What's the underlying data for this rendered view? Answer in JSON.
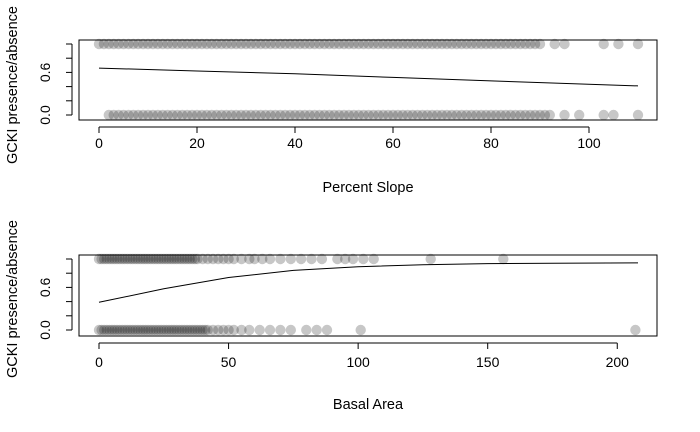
{
  "chart_data": [
    {
      "type": "scatter",
      "title": "",
      "xlabel": "Percent Slope",
      "ylabel": "GCKI presence/absence",
      "xlim": [
        0,
        110
      ],
      "ylim": [
        0,
        1
      ],
      "x_ticks": [
        0,
        20,
        40,
        60,
        80,
        100
      ],
      "y_ticks": [
        0.0,
        0.6
      ],
      "grid": false,
      "legend": "none",
      "point_style": "translucent grey filled circles",
      "series": [
        {
          "type": "scatter",
          "points_presence_y1_x": [
            0,
            1,
            2,
            3,
            4,
            5,
            6,
            7,
            8,
            9,
            10,
            11,
            12,
            13,
            14,
            15,
            16,
            17,
            18,
            19,
            20,
            21,
            22,
            23,
            24,
            25,
            26,
            27,
            28,
            29,
            30,
            31,
            32,
            33,
            34,
            35,
            36,
            37,
            38,
            39,
            40,
            41,
            42,
            43,
            44,
            45,
            46,
            47,
            48,
            49,
            50,
            51,
            52,
            53,
            54,
            55,
            56,
            57,
            58,
            59,
            60,
            61,
            62,
            63,
            64,
            65,
            66,
            67,
            68,
            69,
            70,
            71,
            72,
            73,
            74,
            75,
            76,
            77,
            78,
            79,
            80,
            81,
            82,
            83,
            84,
            85,
            86,
            87,
            88,
            89,
            90,
            93,
            95,
            103,
            106,
            110
          ],
          "points_absence_y0_x": [
            2,
            3,
            4,
            5,
            6,
            7,
            8,
            9,
            10,
            11,
            12,
            13,
            14,
            15,
            16,
            17,
            18,
            19,
            20,
            21,
            22,
            23,
            24,
            25,
            26,
            27,
            28,
            29,
            30,
            31,
            32,
            33,
            34,
            35,
            36,
            37,
            38,
            39,
            40,
            41,
            42,
            43,
            44,
            45,
            46,
            47,
            48,
            49,
            50,
            51,
            52,
            53,
            54,
            55,
            56,
            57,
            58,
            59,
            60,
            61,
            62,
            63,
            64,
            65,
            66,
            67,
            68,
            69,
            70,
            71,
            72,
            73,
            74,
            75,
            76,
            77,
            78,
            79,
            80,
            81,
            82,
            83,
            84,
            85,
            86,
            87,
            88,
            89,
            90,
            91,
            92,
            95,
            98,
            103,
            105,
            110
          ]
        },
        {
          "type": "line",
          "x": [
            0,
            20,
            40,
            60,
            80,
            110
          ],
          "y": [
            0.66,
            0.62,
            0.58,
            0.53,
            0.48,
            0.41
          ]
        }
      ]
    },
    {
      "type": "scatter",
      "title": "",
      "xlabel": "Basal Area",
      "ylabel": "GCKI presence/absence",
      "xlim": [
        0,
        208
      ],
      "ylim": [
        0,
        1
      ],
      "x_ticks": [
        0,
        50,
        100,
        150,
        200
      ],
      "y_ticks": [
        0.0,
        0.6
      ],
      "grid": false,
      "legend": "none",
      "point_style": "translucent grey filled circles",
      "series": [
        {
          "type": "scatter",
          "points_presence_y1_x": [
            0,
            1,
            2,
            3,
            4,
            5,
            6,
            7,
            8,
            9,
            10,
            11,
            12,
            13,
            14,
            15,
            16,
            17,
            18,
            19,
            20,
            21,
            22,
            23,
            24,
            25,
            26,
            27,
            28,
            29,
            30,
            31,
            32,
            33,
            34,
            35,
            36,
            37,
            38,
            40,
            42,
            44,
            46,
            48,
            50,
            52,
            55,
            58,
            60,
            63,
            66,
            70,
            74,
            78,
            82,
            86,
            92,
            95,
            98,
            102,
            106,
            128,
            156
          ],
          "points_absence_y0_x": [
            0,
            1,
            2,
            3,
            4,
            5,
            6,
            7,
            8,
            9,
            10,
            11,
            12,
            13,
            14,
            15,
            16,
            17,
            18,
            19,
            20,
            21,
            22,
            23,
            24,
            25,
            26,
            27,
            28,
            29,
            30,
            31,
            32,
            33,
            34,
            35,
            36,
            37,
            38,
            39,
            40,
            41,
            42,
            44,
            46,
            48,
            50,
            52,
            55,
            58,
            62,
            66,
            70,
            74,
            80,
            84,
            88,
            101,
            207
          ]
        },
        {
          "type": "line",
          "x": [
            0,
            25,
            50,
            75,
            100,
            125,
            150,
            175,
            208
          ],
          "y": [
            0.39,
            0.58,
            0.74,
            0.84,
            0.89,
            0.92,
            0.935,
            0.94,
            0.945
          ]
        }
      ]
    }
  ]
}
